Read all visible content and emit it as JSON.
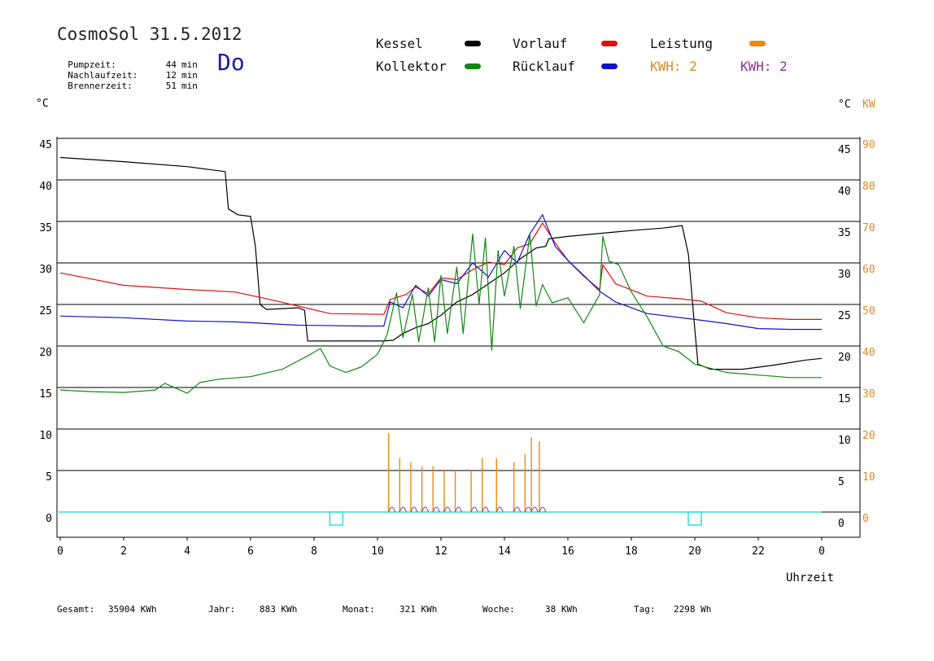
{
  "header": {
    "title": "CosmoSol 31.5.2012",
    "day": "Do",
    "stats": [
      {
        "label": "Pumpzeit:",
        "value": "44",
        "unit": "min"
      },
      {
        "label": "Nachlaufzeit:",
        "value": "12",
        "unit": "min"
      },
      {
        "label": "Brennerzeit:",
        "value": "51",
        "unit": "min"
      }
    ]
  },
  "legend": {
    "kessel": {
      "label": "Kessel",
      "color": "#000000"
    },
    "vorlauf": {
      "label": "Vorlauf",
      "color": "#dd1111"
    },
    "leistung": {
      "label": "Leistung",
      "color": "#ee8811"
    },
    "kollektor": {
      "label": "Kollektor",
      "color": "#118811"
    },
    "ruecklauf": {
      "label": "Rücklauf",
      "color": "#1111cc"
    },
    "kwh1": {
      "label": "KWH: 2",
      "color": "#dd8822"
    },
    "kwh2": {
      "label": "KWH: 2",
      "color": "#883399"
    }
  },
  "axes": {
    "left_unit": "°C",
    "right_unit": "°C",
    "right_unit2": "KW",
    "xlabel": "Uhrzeit"
  },
  "footer": [
    {
      "label": "Gesamt:",
      "value": "35904 KWh"
    },
    {
      "label": "Jahr:",
      "value": "883 KWh"
    },
    {
      "label": "Monat:",
      "value": "321 KWh"
    },
    {
      "label": "Woche:",
      "value": "38 KWh"
    },
    {
      "label": "Tag:",
      "value": "2298 Wh"
    }
  ],
  "chart_data": {
    "type": "line",
    "title": "CosmoSol 31.5.2012",
    "xlabel": "Uhrzeit",
    "ylabel": "°C",
    "y2label": "KW",
    "xlim": [
      0,
      24
    ],
    "ylim": [
      0,
      45
    ],
    "y2lim": [
      0,
      90
    ],
    "x_ticks": [
      "0",
      "2",
      "4",
      "6",
      "8",
      "10",
      "12",
      "14",
      "16",
      "18",
      "20",
      "22",
      "0"
    ],
    "y_ticks": [
      0,
      5,
      10,
      15,
      20,
      25,
      30,
      35,
      40,
      45
    ],
    "y2_ticks": [
      0,
      10,
      20,
      30,
      40,
      50,
      60,
      70,
      80,
      90
    ],
    "grid": true,
    "series": [
      {
        "name": "Kessel",
        "color": "#000000",
        "points": [
          [
            0,
            42.7
          ],
          [
            2,
            42.2
          ],
          [
            4,
            41.6
          ],
          [
            5.2,
            41.0
          ],
          [
            5.3,
            36.5
          ],
          [
            5.6,
            35.8
          ],
          [
            6.0,
            35.6
          ],
          [
            6.15,
            32
          ],
          [
            6.3,
            25
          ],
          [
            6.5,
            24.4
          ],
          [
            7.5,
            24.6
          ],
          [
            7.7,
            24.3
          ],
          [
            7.8,
            20.6
          ],
          [
            10.2,
            20.6
          ],
          [
            10.5,
            20.7
          ],
          [
            10.8,
            21.5
          ],
          [
            11.2,
            22.2
          ],
          [
            11.6,
            22.7
          ],
          [
            12.0,
            23.7
          ],
          [
            12.5,
            25.3
          ],
          [
            13.0,
            26.2
          ],
          [
            13.5,
            27.5
          ],
          [
            14.0,
            28.8
          ],
          [
            14.5,
            30.5
          ],
          [
            15.0,
            31.8
          ],
          [
            15.3,
            32.0
          ],
          [
            15.4,
            32.9
          ],
          [
            16.0,
            33.2
          ],
          [
            18.0,
            33.9
          ],
          [
            19.0,
            34.2
          ],
          [
            19.6,
            34.5
          ],
          [
            19.8,
            31
          ],
          [
            20.0,
            22
          ],
          [
            20.1,
            17.8
          ],
          [
            20.5,
            17.2
          ],
          [
            21.5,
            17.2
          ],
          [
            22.5,
            17.7
          ],
          [
            23.5,
            18.3
          ],
          [
            24,
            18.5
          ]
        ]
      },
      {
        "name": "Vorlauf",
        "color": "#dd1111",
        "points": [
          [
            0,
            28.8
          ],
          [
            2,
            27.3
          ],
          [
            4,
            26.8
          ],
          [
            5.5,
            26.5
          ],
          [
            6.5,
            25.7
          ],
          [
            7.5,
            24.8
          ],
          [
            8.5,
            23.9
          ],
          [
            10.2,
            23.8
          ],
          [
            10.4,
            25.6
          ],
          [
            10.9,
            26.2
          ],
          [
            11.2,
            27.1
          ],
          [
            11.6,
            26.3
          ],
          [
            12.0,
            28.2
          ],
          [
            12.5,
            28.0
          ],
          [
            13.0,
            29.2
          ],
          [
            13.5,
            30.1
          ],
          [
            14.0,
            29.8
          ],
          [
            14.4,
            31.8
          ],
          [
            14.8,
            32.3
          ],
          [
            15.2,
            34.8
          ],
          [
            15.6,
            32.4
          ],
          [
            16.0,
            30.3
          ],
          [
            16.5,
            28.4
          ],
          [
            17.0,
            26.8
          ],
          [
            17.1,
            29.8
          ],
          [
            17.5,
            27.5
          ],
          [
            18.5,
            26.0
          ],
          [
            19.5,
            25.7
          ],
          [
            20.2,
            25.4
          ],
          [
            21.0,
            24.0
          ],
          [
            22.0,
            23.4
          ],
          [
            23.0,
            23.2
          ],
          [
            24,
            23.2
          ]
        ]
      },
      {
        "name": "Rücklauf",
        "color": "#1111cc",
        "points": [
          [
            0,
            23.6
          ],
          [
            2,
            23.4
          ],
          [
            4,
            23.0
          ],
          [
            5.5,
            22.9
          ],
          [
            7.5,
            22.5
          ],
          [
            9.5,
            22.4
          ],
          [
            10.2,
            22.4
          ],
          [
            10.4,
            25.3
          ],
          [
            10.8,
            24.6
          ],
          [
            11.2,
            27.3
          ],
          [
            11.6,
            26.0
          ],
          [
            12.0,
            28.0
          ],
          [
            12.5,
            27.5
          ],
          [
            13.0,
            30.0
          ],
          [
            13.5,
            28.3
          ],
          [
            14.0,
            31.5
          ],
          [
            14.4,
            30.0
          ],
          [
            14.8,
            33.5
          ],
          [
            15.2,
            35.8
          ],
          [
            15.6,
            32.0
          ],
          [
            16.0,
            30.3
          ],
          [
            16.5,
            28.5
          ],
          [
            17.0,
            26.6
          ],
          [
            17.5,
            25.3
          ],
          [
            18.5,
            23.9
          ],
          [
            20.0,
            23.2
          ],
          [
            21.0,
            22.7
          ],
          [
            22.0,
            22.1
          ],
          [
            23.0,
            22.0
          ],
          [
            24,
            22.0
          ]
        ]
      },
      {
        "name": "Kollektor",
        "color": "#118811",
        "points": [
          [
            0,
            14.7
          ],
          [
            1,
            14.5
          ],
          [
            2,
            14.4
          ],
          [
            3,
            14.7
          ],
          [
            3.3,
            15.5
          ],
          [
            4,
            14.3
          ],
          [
            4.4,
            15.6
          ],
          [
            5,
            16.0
          ],
          [
            6,
            16.3
          ],
          [
            7,
            17.2
          ],
          [
            7.8,
            18.8
          ],
          [
            8.2,
            19.7
          ],
          [
            8.5,
            17.6
          ],
          [
            9.0,
            16.8
          ],
          [
            9.5,
            17.5
          ],
          [
            10.0,
            19.0
          ],
          [
            10.3,
            21.3
          ],
          [
            10.6,
            26.4
          ],
          [
            10.8,
            21.0
          ],
          [
            11.1,
            26.2
          ],
          [
            11.3,
            20.5
          ],
          [
            11.6,
            27.0
          ],
          [
            11.8,
            20.5
          ],
          [
            12.0,
            28.5
          ],
          [
            12.2,
            21.5
          ],
          [
            12.5,
            29.5
          ],
          [
            12.7,
            21.5
          ],
          [
            13.0,
            33.5
          ],
          [
            13.2,
            25.0
          ],
          [
            13.4,
            33.0
          ],
          [
            13.6,
            19.5
          ],
          [
            13.8,
            31.5
          ],
          [
            14.0,
            26.0
          ],
          [
            14.3,
            32.0
          ],
          [
            14.5,
            24.5
          ],
          [
            14.8,
            33.5
          ],
          [
            15.0,
            24.8
          ],
          [
            15.2,
            27.4
          ],
          [
            15.5,
            25.2
          ],
          [
            16.0,
            25.8
          ],
          [
            16.5,
            22.8
          ],
          [
            17.0,
            26.2
          ],
          [
            17.1,
            33.2
          ],
          [
            17.3,
            30.2
          ],
          [
            17.6,
            29.8
          ],
          [
            18.0,
            26.5
          ],
          [
            18.5,
            23.5
          ],
          [
            19.0,
            20.0
          ],
          [
            19.5,
            19.3
          ],
          [
            20.0,
            17.8
          ],
          [
            21.0,
            16.8
          ],
          [
            22.0,
            16.5
          ],
          [
            23.0,
            16.2
          ],
          [
            24,
            16.2
          ]
        ]
      }
    ],
    "leistung_spikes_h": [
      10.35,
      10.7,
      11.05,
      11.4,
      11.75,
      12.1,
      12.45,
      12.95,
      13.3,
      13.75,
      14.3,
      14.65,
      14.85,
      15.1
    ],
    "leistung_spike_kw": [
      19,
      13,
      12,
      11,
      11,
      10,
      10,
      10,
      13,
      13,
      12,
      14,
      18,
      17
    ],
    "markers_h": [
      8.7,
      20.0
    ]
  }
}
